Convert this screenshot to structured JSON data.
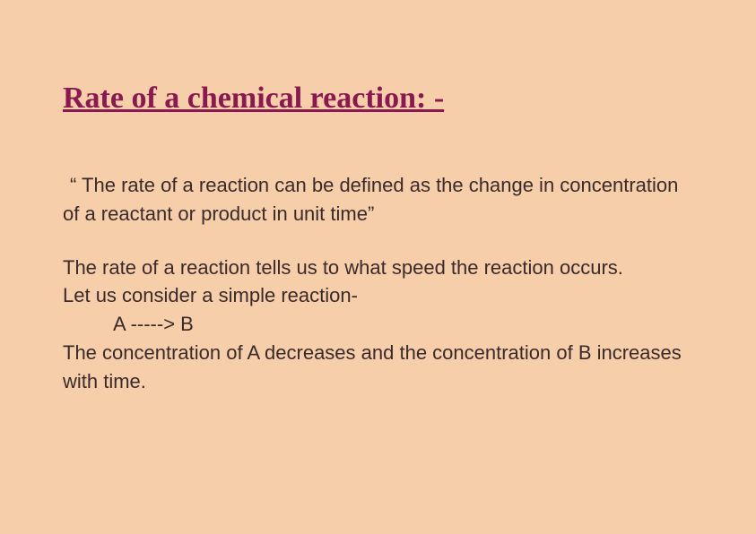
{
  "background_color": "#f7ceaa",
  "title": {
    "text": "Rate of a chemical reaction: -",
    "color": "#8a1952",
    "font_family": "Comic Sans MS",
    "font_size_pt": 26,
    "font_weight": "bold",
    "underline": true
  },
  "body": {
    "text_color": "#3a2a2a",
    "font_family": "Trebuchet MS",
    "font_size_pt": 17,
    "definition": "“ The rate of a reaction can be defined as the change in concentration of a reactant or product in unit time”",
    "explain_line1": "The rate of a reaction tells us to what speed the reaction occurs.",
    "explain_line2": "Let us consider a simple reaction-",
    "reaction": "A -----> B",
    "explain_line3": "The concentration of A decreases and the concentration of B increases with time."
  }
}
